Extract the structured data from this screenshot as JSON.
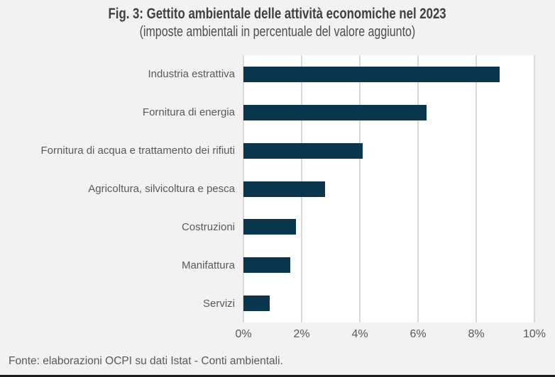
{
  "figure": {
    "title": "Fig. 3: Gettito ambientale delle attività economiche nel 2023",
    "subtitle": "(imposte ambientali in percentuale del valore aggiunto)",
    "source_note": "Fonte: elaborazioni OCPI su dati Istat - Conti ambientali."
  },
  "chart_data": {
    "type": "bar",
    "orientation": "horizontal",
    "title": "Fig. 3: Gettito ambientale delle attività economiche nel 2023",
    "subtitle": "(imposte ambientali in percentuale del valore aggiunto)",
    "categories": [
      "Industria estrattiva",
      "Fornitura di energia",
      "Fornitura di acqua e trattamento dei rifiuti",
      "Agricoltura, silvicoltura e pesca",
      "Costruzioni",
      "Manifattura",
      "Servizi"
    ],
    "values": [
      8.8,
      6.3,
      4.1,
      2.8,
      1.8,
      1.6,
      0.9
    ],
    "value_unit": "percent of value added",
    "xlabel": "",
    "ylabel": "",
    "xlim": [
      0,
      10
    ],
    "x_tick_values": [
      0,
      2,
      4,
      6,
      8,
      10
    ],
    "x_tick_labels": [
      "0%",
      "2%",
      "4%",
      "6%",
      "8%",
      "10%"
    ],
    "grid": "vertical-gridlines-on",
    "legend": "none",
    "colors": {
      "bar": "#0a364d",
      "page_background": "#f2f2f2",
      "plot_background": "#ffffff",
      "gridline": "#d9d9d9",
      "label_text": "#595959",
      "title_text": "#3f3f3f",
      "bottom_rule": "#1b1b1b"
    }
  }
}
